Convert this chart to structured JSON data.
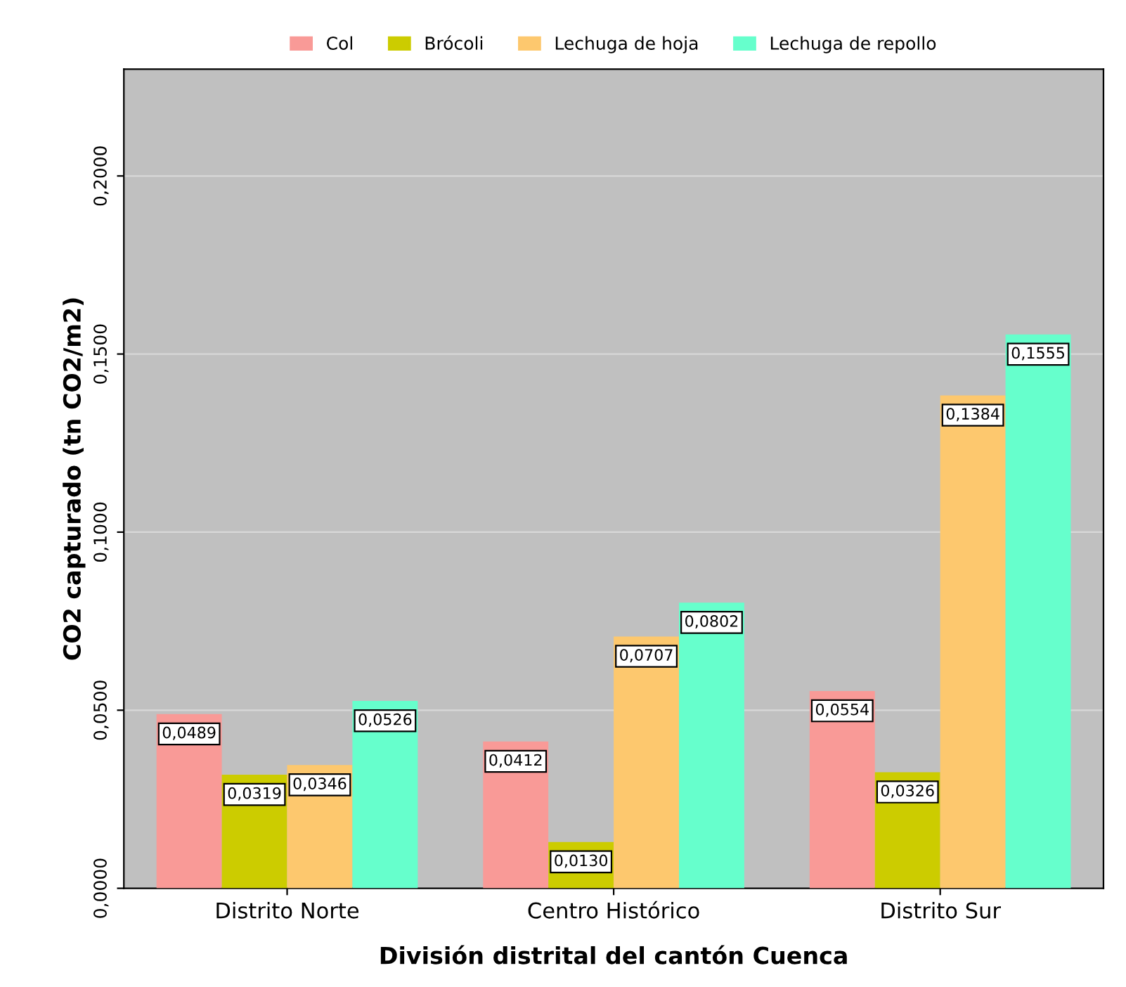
{
  "chart_data": {
    "type": "bar",
    "xlabel": "División distrital del cantón Cuenca",
    "ylabel": "CO2 capturado (tn CO2/m2)",
    "categories": [
      "Distrito Norte",
      "Centro Histórico",
      "Distrito Sur"
    ],
    "series": [
      {
        "name": "Col",
        "color": "#f99a97",
        "values": [
          0.0489,
          0.0412,
          0.0554
        ],
        "value_labels": [
          "0,0489",
          "0,0412",
          "0,0554"
        ]
      },
      {
        "name": "Brócoli",
        "color": "#cccc00",
        "values": [
          0.0319,
          0.013,
          0.0326
        ],
        "value_labels": [
          "0,0319",
          "0,0130",
          "0,0326"
        ]
      },
      {
        "name": "Lechuga de hoja",
        "color": "#fdc86e",
        "values": [
          0.0346,
          0.0707,
          0.1384
        ],
        "value_labels": [
          "0,0346",
          "0,0707",
          "0,1384"
        ]
      },
      {
        "name": "Lechuga de repollo",
        "color": "#66ffcc",
        "values": [
          0.0526,
          0.0802,
          0.1555
        ],
        "value_labels": [
          "0,0526",
          "0,0802",
          "0,1555"
        ]
      }
    ],
    "ylim": [
      0,
      0.23
    ],
    "yticks": [
      {
        "value": 0,
        "label": "0,0000"
      },
      {
        "value": 0.05,
        "label": "0,0500"
      },
      {
        "value": 0.1,
        "label": "0,1000"
      },
      {
        "value": 0.15,
        "label": "0,1500"
      },
      {
        "value": 0.2,
        "label": "0,2000"
      }
    ],
    "grid": "y",
    "legend": "top"
  }
}
